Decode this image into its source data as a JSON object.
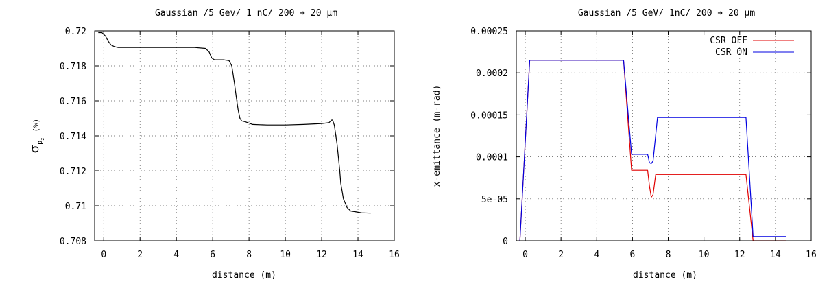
{
  "chart_data": [
    {
      "type": "line",
      "title": "Gaussian /5 Gev/ 1 nC/ 200 ➔ 20 μm",
      "xlabel": "distance (m)",
      "ylabel": "σ",
      "ylabel_subscript": "p",
      "ylabel_subsubscript": "z",
      "ylabel_unit": "(%)",
      "xlim": [
        -0.5,
        16
      ],
      "ylim": [
        0.708,
        0.72
      ],
      "xticks": [
        0,
        2,
        4,
        6,
        8,
        10,
        12,
        14,
        16
      ],
      "yticks": [
        0.708,
        0.71,
        0.712,
        0.714,
        0.716,
        0.718,
        0.72
      ],
      "ytick_labels": [
        "0.708",
        "0.71",
        "0.712",
        "0.714",
        "0.716",
        "0.718",
        "0.72"
      ],
      "grid": true,
      "series": [
        {
          "color": "#000000",
          "x": [
            -0.3,
            -0.1,
            0.1,
            0.25,
            0.4,
            0.6,
            0.8,
            1.0,
            1.5,
            2,
            3,
            4,
            5,
            5.6,
            5.8,
            5.95,
            6.1,
            6.3,
            6.6,
            6.9,
            7.05,
            7.2,
            7.3,
            7.4,
            7.5,
            7.6,
            7.8,
            8.2,
            9,
            10,
            11,
            12,
            12.4,
            12.55,
            12.6,
            12.7,
            12.85,
            13.0,
            13.05,
            13.2,
            13.4,
            13.6,
            13.9,
            14.2,
            14.7
          ],
          "y": [
            0.7199,
            0.7199,
            0.7197,
            0.7194,
            0.7192,
            0.7191,
            0.71905,
            0.71905,
            0.71905,
            0.71905,
            0.71905,
            0.71905,
            0.71905,
            0.719,
            0.7188,
            0.71845,
            0.71835,
            0.71835,
            0.71835,
            0.7183,
            0.718,
            0.717,
            0.7162,
            0.7155,
            0.715,
            0.71485,
            0.7148,
            0.71465,
            0.71462,
            0.71462,
            0.71465,
            0.7147,
            0.71475,
            0.7149,
            0.7149,
            0.7146,
            0.7135,
            0.712,
            0.7113,
            0.7104,
            0.7099,
            0.7097,
            0.70965,
            0.7096,
            0.70958
          ]
        }
      ]
    },
    {
      "type": "line",
      "title": "Gaussian /5 GeV/ 1nC/ 200 ➔ 20 μm",
      "xlabel": "distance (m)",
      "ylabel": "x-emittance (m-rad)",
      "xlim": [
        -0.5,
        16
      ],
      "ylim": [
        0,
        0.00025
      ],
      "xticks": [
        0,
        2,
        4,
        6,
        8,
        10,
        12,
        14,
        16
      ],
      "yticks": [
        0,
        5e-05,
        0.0001,
        0.00015,
        0.0002,
        0.00025
      ],
      "ytick_labels": [
        "0",
        "5e-05",
        "0.0001",
        "0.00015",
        "0.0002",
        "0.00025"
      ],
      "grid": true,
      "legend_position": "top-right",
      "series": [
        {
          "name": "CSR OFF",
          "color": "#e00000",
          "x": [
            -0.3,
            0.25,
            5.5,
            5.95,
            6.85,
            6.95,
            7.05,
            7.15,
            7.3,
            12.35,
            12.75,
            14.6
          ],
          "y": [
            0.0,
            0.000215,
            0.000215,
            8.4e-05,
            8.4e-05,
            6.5e-05,
            5.2e-05,
            5.5e-05,
            7.9e-05,
            7.9e-05,
            0.0,
            0.0
          ]
        },
        {
          "name": "CSR ON",
          "color": "#0000e0",
          "x": [
            -0.3,
            0.25,
            5.5,
            5.95,
            6.85,
            6.95,
            7.05,
            7.15,
            7.4,
            12.35,
            12.75,
            14.6
          ],
          "y": [
            0.0,
            0.000215,
            0.000215,
            0.000103,
            0.000103,
            9.3e-05,
            9.2e-05,
            9.5e-05,
            0.000147,
            0.000147,
            5e-06,
            5e-06
          ]
        }
      ]
    }
  ]
}
